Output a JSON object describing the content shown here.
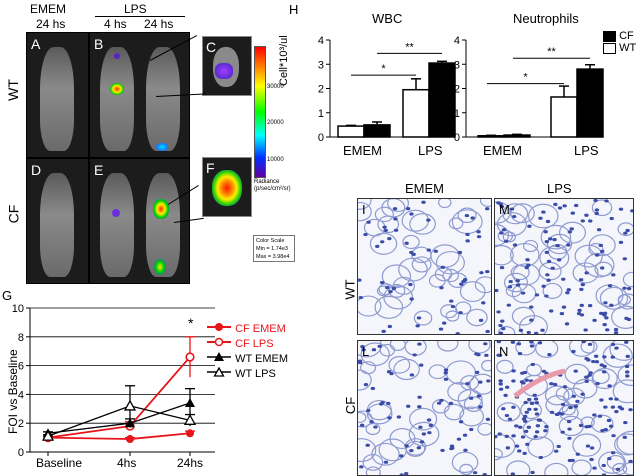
{
  "left_top": {
    "col_headers": [
      "EMEM",
      "LPS"
    ],
    "sub_headers": [
      "24 hs",
      "4 hs",
      "24 hs"
    ],
    "row_labels": [
      "WT",
      "CF"
    ],
    "panels": [
      "A",
      "B",
      "C",
      "D",
      "E",
      "F"
    ],
    "colorbar": {
      "ticks": [
        "30000",
        "20000",
        "10000"
      ],
      "label": "Radiance (p/sec/cm²/sr)",
      "scale_title": "Color Scale",
      "min": "Min = 1.74e3",
      "max": "Max = 3.98e4"
    }
  },
  "panel_h": {
    "letter": "H",
    "titles": [
      "WBC",
      "Neutrophils"
    ],
    "ylabel": "Cell*10³/ul",
    "ylim": [
      0,
      4
    ],
    "yticks": [
      "0",
      "1",
      "2",
      "3",
      "4"
    ],
    "groups": [
      "EMEM",
      "LPS"
    ],
    "legend": [
      "CF",
      "WT"
    ],
    "sig_labels": [
      "**",
      "*",
      "**",
      "*"
    ]
  },
  "panel_g": {
    "letter": "G",
    "star": "*",
    "ylabel": "FOI vs Baseline",
    "ylim": [
      0,
      10
    ],
    "yticks": [
      "0",
      "2",
      "4",
      "6",
      "8",
      "10"
    ],
    "xticks": [
      "Baseline",
      "4hs",
      "24hs"
    ],
    "legend": [
      "CF EMEM",
      "CF LPS",
      "WT EMEM",
      "WT LPS"
    ]
  },
  "histology": {
    "col_headers": [
      "EMEM",
      "LPS"
    ],
    "row_labels": [
      "WT",
      "CF"
    ],
    "panels": [
      "I",
      "M",
      "L",
      "N"
    ]
  },
  "chart_data": [
    {
      "type": "bar",
      "title": "WBC",
      "categories": [
        "EMEM",
        "LPS"
      ],
      "ylabel": "Cell*10³/ul",
      "ylim": [
        0,
        4
      ],
      "series": [
        {
          "name": "WT",
          "values": [
            0.45,
            1.95
          ],
          "errors": [
            0.03,
            0.45
          ],
          "color": "#ffffff"
        },
        {
          "name": "CF",
          "values": [
            0.5,
            3.05
          ],
          "errors": [
            0.12,
            0.07
          ],
          "color": "#000000"
        }
      ]
    },
    {
      "type": "bar",
      "title": "Neutrophils",
      "categories": [
        "EMEM",
        "LPS"
      ],
      "ylim": [
        0,
        4
      ],
      "series": [
        {
          "name": "WT",
          "values": [
            0.05,
            1.65
          ],
          "errors": [
            0.02,
            0.45
          ],
          "color": "#ffffff"
        },
        {
          "name": "CF",
          "values": [
            0.08,
            2.8
          ],
          "errors": [
            0.03,
            0.18
          ],
          "color": "#000000"
        }
      ]
    },
    {
      "type": "line",
      "x": [
        "Baseline",
        "4hs",
        "24hs"
      ],
      "ylabel": "FOI vs Baseline",
      "ylim": [
        0,
        10
      ],
      "series": [
        {
          "name": "CF EMEM",
          "values": [
            1.0,
            0.9,
            1.3
          ],
          "errors": [
            0.1,
            0.1,
            0.15
          ],
          "color": "#e8141b",
          "marker": "filled-circle"
        },
        {
          "name": "CF LPS",
          "values": [
            1.0,
            1.8,
            6.6
          ],
          "errors": [
            0.1,
            0.3,
            1.4
          ],
          "color": "#e8141b",
          "marker": "open-circle"
        },
        {
          "name": "WT EMEM",
          "values": [
            1.3,
            2.0,
            3.4
          ],
          "errors": [
            0.1,
            0.3,
            1.0
          ],
          "color": "#000000",
          "marker": "filled-triangle"
        },
        {
          "name": "WT LPS",
          "values": [
            1.1,
            3.2,
            2.2
          ],
          "errors": [
            0.1,
            1.4,
            0.4
          ],
          "color": "#000000",
          "marker": "open-triangle"
        }
      ]
    }
  ]
}
